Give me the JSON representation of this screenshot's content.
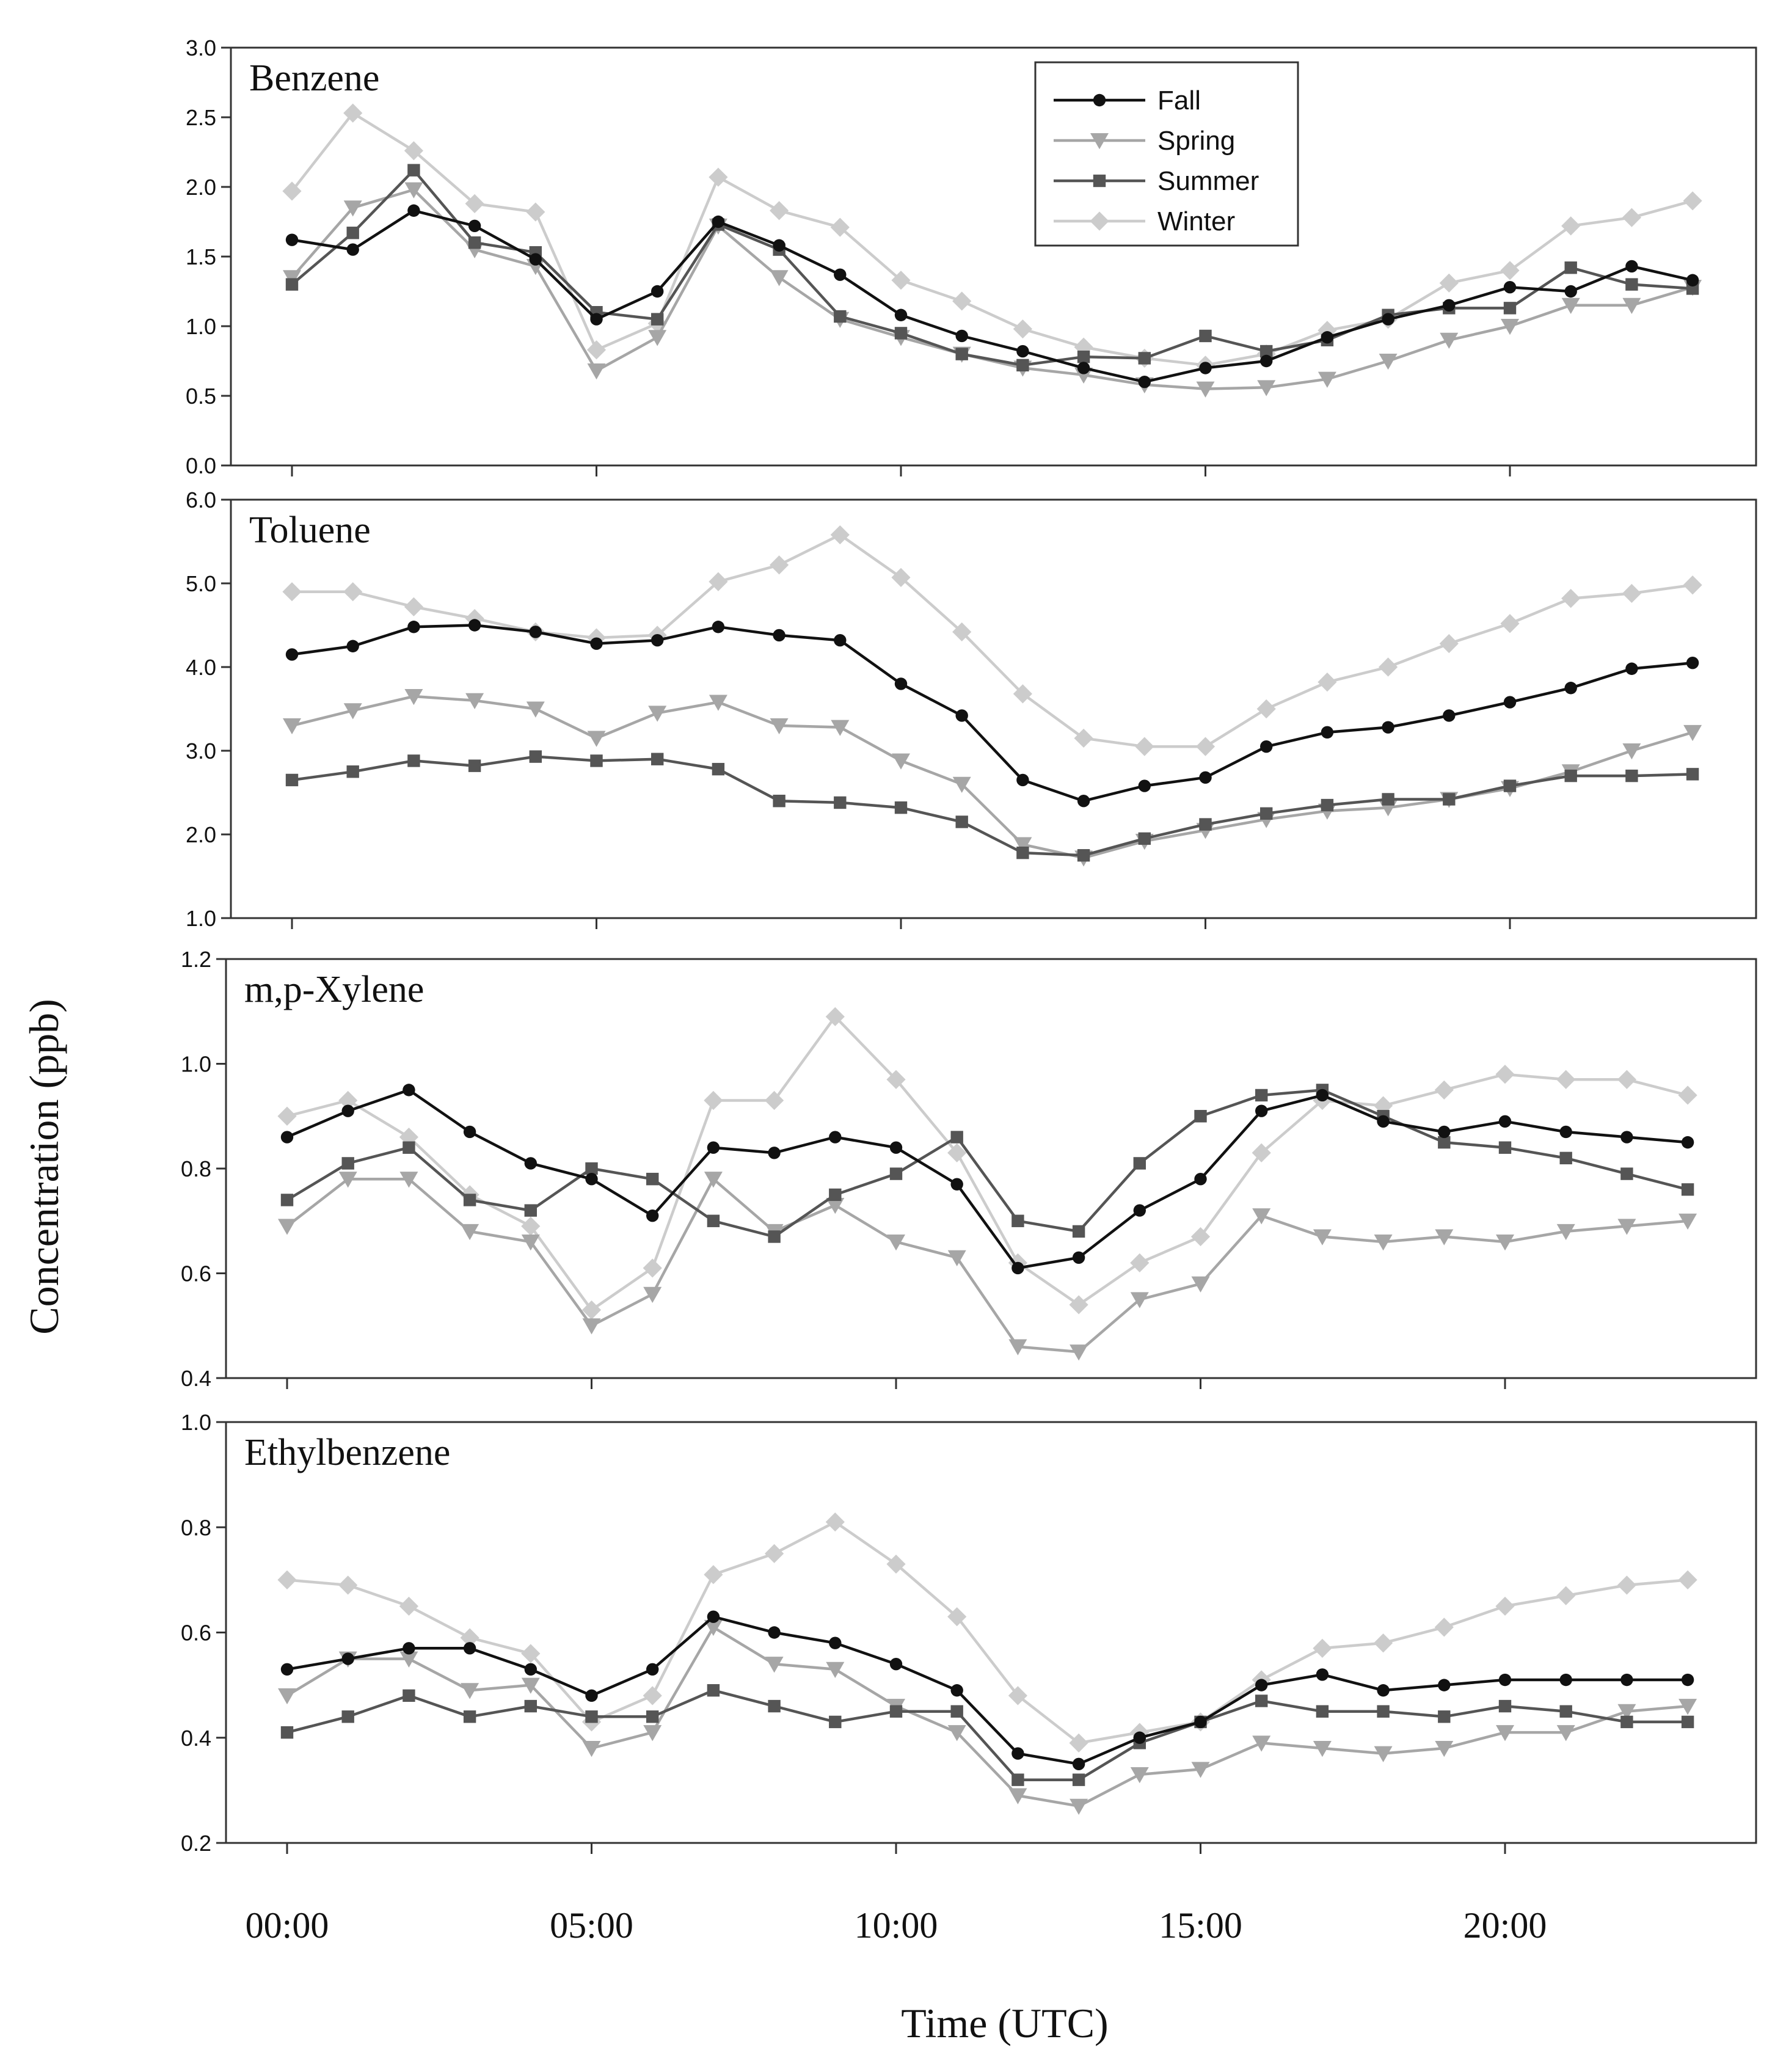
{
  "chart_data": {
    "type": "line",
    "xlabel": "Time (UTC)",
    "ylabel": "Concentration (ppb)",
    "x": [
      0,
      1,
      2,
      3,
      4,
      5,
      6,
      7,
      8,
      9,
      10,
      11,
      12,
      13,
      14,
      15,
      16,
      17,
      18,
      19,
      20,
      21,
      22,
      23
    ],
    "xticks": [
      0,
      5,
      10,
      15,
      20
    ],
    "xtick_labels": [
      "00:00",
      "05:00",
      "10:00",
      "15:00",
      "20:00"
    ],
    "legend": {
      "placement": "top-right of first panel",
      "entries": [
        {
          "name": "Fall",
          "color": "#111111",
          "marker": "circle"
        },
        {
          "name": "Spring",
          "color": "#a6a6a6",
          "marker": "triangle-down"
        },
        {
          "name": "Summer",
          "color": "#555555",
          "marker": "square"
        },
        {
          "name": "Winter",
          "color": "#cccccc",
          "marker": "diamond"
        }
      ]
    },
    "panels": [
      {
        "title": "Benzene",
        "ylim": [
          0.0,
          3.0
        ],
        "yticks": [
          0.0,
          0.5,
          1.0,
          1.5,
          2.0,
          2.5,
          3.0
        ],
        "ytick_labels": [
          "0.0",
          "0.5",
          "1.0",
          "1.5",
          "2.0",
          "2.5",
          "3.0"
        ],
        "series": [
          {
            "name": "Fall",
            "values": [
              1.62,
              1.55,
              1.83,
              1.72,
              1.48,
              1.05,
              1.25,
              1.75,
              1.58,
              1.37,
              1.08,
              0.93,
              0.82,
              0.7,
              0.6,
              0.7,
              0.75,
              0.92,
              1.05,
              1.15,
              1.28,
              1.25,
              1.43,
              1.33
            ]
          },
          {
            "name": "Spring",
            "values": [
              1.35,
              1.85,
              1.98,
              1.55,
              1.43,
              0.68,
              0.92,
              1.72,
              1.35,
              1.05,
              0.92,
              0.8,
              0.7,
              0.65,
              0.58,
              0.55,
              0.56,
              0.62,
              0.75,
              0.9,
              1.0,
              1.15,
              1.15,
              1.28
            ]
          },
          {
            "name": "Summer",
            "values": [
              1.3,
              1.67,
              2.12,
              1.6,
              1.53,
              1.1,
              1.05,
              1.73,
              1.55,
              1.07,
              0.95,
              0.8,
              0.72,
              0.78,
              0.77,
              0.93,
              0.82,
              0.9,
              1.08,
              1.13,
              1.13,
              1.42,
              1.3,
              1.27
            ]
          },
          {
            "name": "Winter",
            "values": [
              1.97,
              2.53,
              2.26,
              1.88,
              1.82,
              0.83,
              1.02,
              2.07,
              1.83,
              1.71,
              1.33,
              1.18,
              0.98,
              0.85,
              0.77,
              0.72,
              0.8,
              0.97,
              1.05,
              1.31,
              1.4,
              1.72,
              1.78,
              1.9
            ]
          }
        ]
      },
      {
        "title": "Toluene",
        "ylim": [
          1.0,
          6.0
        ],
        "yticks": [
          1.0,
          2.0,
          3.0,
          4.0,
          5.0,
          6.0
        ],
        "ytick_labels": [
          "1.0",
          "2.0",
          "3.0",
          "4.0",
          "5.0",
          "6.0"
        ],
        "series": [
          {
            "name": "Fall",
            "values": [
              4.15,
              4.25,
              4.48,
              4.5,
              4.42,
              4.28,
              4.32,
              4.48,
              4.38,
              4.32,
              3.8,
              3.42,
              2.65,
              2.4,
              2.58,
              2.68,
              3.05,
              3.22,
              3.28,
              3.42,
              3.58,
              3.75,
              3.98,
              4.05
            ]
          },
          {
            "name": "Spring",
            "values": [
              3.3,
              3.48,
              3.65,
              3.6,
              3.5,
              3.15,
              3.45,
              3.58,
              3.3,
              3.28,
              2.88,
              2.6,
              1.88,
              1.72,
              1.92,
              2.05,
              2.18,
              2.28,
              2.32,
              2.42,
              2.55,
              2.75,
              3.0,
              3.22
            ]
          },
          {
            "name": "Summer",
            "values": [
              2.65,
              2.75,
              2.88,
              2.82,
              2.93,
              2.88,
              2.9,
              2.78,
              2.4,
              2.38,
              2.32,
              2.15,
              1.78,
              1.75,
              1.95,
              2.12,
              2.25,
              2.35,
              2.42,
              2.42,
              2.58,
              2.7,
              2.7,
              2.72
            ]
          },
          {
            "name": "Winter",
            "values": [
              4.9,
              4.9,
              4.72,
              4.58,
              4.42,
              4.35,
              4.38,
              5.02,
              5.22,
              5.58,
              5.07,
              4.42,
              3.68,
              3.15,
              3.05,
              3.05,
              3.5,
              3.82,
              4.0,
              4.28,
              4.52,
              4.82,
              4.88,
              4.98
            ]
          }
        ]
      },
      {
        "title": "m,p-Xylene",
        "ylim": [
          0.4,
          1.2
        ],
        "yticks": [
          0.4,
          0.6,
          0.8,
          1.0,
          1.2
        ],
        "ytick_labels": [
          "0.4",
          "0.6",
          "0.8",
          "1.0",
          "1.2"
        ],
        "series": [
          {
            "name": "Fall",
            "values": [
              0.86,
              0.91,
              0.95,
              0.87,
              0.81,
              0.78,
              0.71,
              0.84,
              0.83,
              0.86,
              0.84,
              0.77,
              0.61,
              0.63,
              0.72,
              0.78,
              0.91,
              0.94,
              0.89,
              0.87,
              0.89,
              0.87,
              0.86,
              0.85
            ]
          },
          {
            "name": "Spring",
            "values": [
              0.69,
              0.78,
              0.78,
              0.68,
              0.66,
              0.5,
              0.56,
              0.78,
              0.68,
              0.73,
              0.66,
              0.63,
              0.46,
              0.45,
              0.55,
              0.58,
              0.71,
              0.67,
              0.66,
              0.67,
              0.66,
              0.68,
              0.69,
              0.7
            ]
          },
          {
            "name": "Summer",
            "values": [
              0.74,
              0.81,
              0.84,
              0.74,
              0.72,
              0.8,
              0.78,
              0.7,
              0.67,
              0.75,
              0.79,
              0.86,
              0.7,
              0.68,
              0.81,
              0.9,
              0.94,
              0.95,
              0.9,
              0.85,
              0.84,
              0.82,
              0.79,
              0.76
            ]
          },
          {
            "name": "Winter",
            "values": [
              0.9,
              0.93,
              0.86,
              0.75,
              0.69,
              0.53,
              0.61,
              0.93,
              0.93,
              1.09,
              0.97,
              0.83,
              0.62,
              0.54,
              0.62,
              0.67,
              0.83,
              0.93,
              0.92,
              0.95,
              0.98,
              0.97,
              0.97,
              0.94
            ]
          }
        ]
      },
      {
        "title": "Ethylbenzene",
        "ylim": [
          0.2,
          1.0
        ],
        "yticks": [
          0.2,
          0.4,
          0.6,
          0.8,
          1.0
        ],
        "ytick_labels": [
          "0.2",
          "0.4",
          "0.6",
          "0.8",
          "1.0"
        ],
        "series": [
          {
            "name": "Fall",
            "values": [
              0.53,
              0.55,
              0.57,
              0.57,
              0.53,
              0.48,
              0.53,
              0.63,
              0.6,
              0.58,
              0.54,
              0.49,
              0.37,
              0.35,
              0.4,
              0.43,
              0.5,
              0.52,
              0.49,
              0.5,
              0.51,
              0.51,
              0.51,
              0.51
            ]
          },
          {
            "name": "Spring",
            "values": [
              0.48,
              0.55,
              0.55,
              0.49,
              0.5,
              0.38,
              0.41,
              0.61,
              0.54,
              0.53,
              0.46,
              0.41,
              0.29,
              0.27,
              0.33,
              0.34,
              0.39,
              0.38,
              0.37,
              0.38,
              0.41,
              0.41,
              0.45,
              0.46
            ]
          },
          {
            "name": "Summer",
            "values": [
              0.41,
              0.44,
              0.48,
              0.44,
              0.46,
              0.44,
              0.44,
              0.49,
              0.46,
              0.43,
              0.45,
              0.45,
              0.32,
              0.32,
              0.39,
              0.43,
              0.47,
              0.45,
              0.45,
              0.44,
              0.46,
              0.45,
              0.43,
              0.43
            ]
          },
          {
            "name": "Winter",
            "values": [
              0.7,
              0.69,
              0.65,
              0.59,
              0.56,
              0.43,
              0.48,
              0.71,
              0.75,
              0.81,
              0.73,
              0.63,
              0.48,
              0.39,
              0.41,
              0.43,
              0.51,
              0.57,
              0.58,
              0.61,
              0.65,
              0.67,
              0.69,
              0.7
            ]
          }
        ]
      }
    ]
  }
}
